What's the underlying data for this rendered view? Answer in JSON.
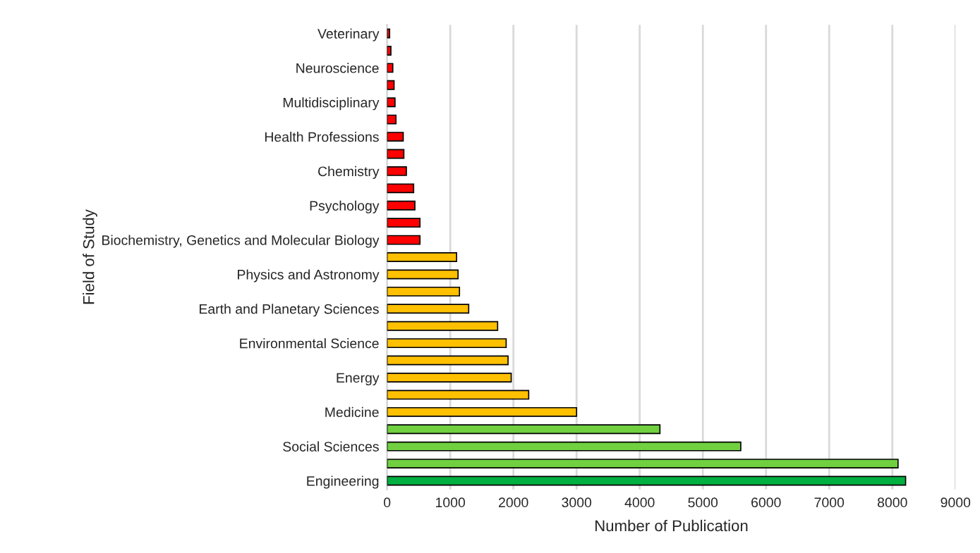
{
  "chart_data": {
    "type": "bar",
    "orientation": "horizontal",
    "xlabel": "Number of Publication",
    "ylabel": "Field of Study",
    "categories": [
      "Veterinary",
      null,
      "Neuroscience",
      null,
      "Multidisciplinary",
      null,
      "Health Professions",
      null,
      "Chemistry",
      null,
      "Psychology",
      null,
      "Biochemistry, Genetics and Molecular Biology",
      null,
      "Physics and Astronomy",
      null,
      "Earth and Planetary Sciences",
      null,
      "Environmental Science",
      null,
      "Energy",
      null,
      "Medicine",
      null,
      "Social Sciences",
      null,
      "Engineering"
    ],
    "values": [
      40,
      60,
      90,
      110,
      125,
      140,
      255,
      265,
      305,
      420,
      440,
      520,
      520,
      1100,
      1123,
      1146,
      1292,
      1750,
      1885,
      1915,
      1965,
      2242,
      3000,
      4320,
      5600,
      8090,
      8210
    ],
    "colors": [
      "#ff0000",
      "#ff0000",
      "#ff0000",
      "#ff0000",
      "#ff0000",
      "#ff0000",
      "#ff0000",
      "#ff0000",
      "#ff0000",
      "#ff0000",
      "#ff0000",
      "#ff0000",
      "#ff0000",
      "#ffc000",
      "#ffc000",
      "#ffc000",
      "#ffc000",
      "#ffc000",
      "#ffc000",
      "#ffc000",
      "#ffc000",
      "#ffc000",
      "#ffc000",
      "#70d040",
      "#70d040",
      "#70d040",
      "#00b040"
    ],
    "xlim": [
      0,
      9000
    ],
    "xticks": [
      0,
      1000,
      2000,
      3000,
      4000,
      5000,
      6000,
      7000,
      8000,
      9000
    ],
    "grid": "x"
  }
}
